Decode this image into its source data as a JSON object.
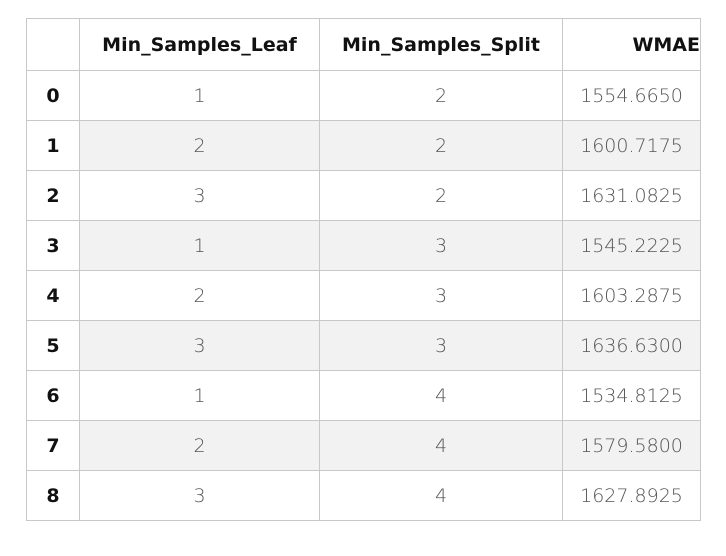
{
  "table": {
    "columns": [
      "",
      "Min_Samples_Leaf",
      "Min_Samples_Split",
      "WMAE"
    ],
    "rows": [
      {
        "index": "0",
        "leaf": "1",
        "split": "2",
        "wmae": "1554.6650"
      },
      {
        "index": "1",
        "leaf": "2",
        "split": "2",
        "wmae": "1600.7175"
      },
      {
        "index": "2",
        "leaf": "3",
        "split": "2",
        "wmae": "1631.0825"
      },
      {
        "index": "3",
        "leaf": "1",
        "split": "3",
        "wmae": "1545.2225"
      },
      {
        "index": "4",
        "leaf": "2",
        "split": "3",
        "wmae": "1603.2875"
      },
      {
        "index": "5",
        "leaf": "3",
        "split": "3",
        "wmae": "1636.6300"
      },
      {
        "index": "6",
        "leaf": "1",
        "split": "4",
        "wmae": "1534.8125"
      },
      {
        "index": "7",
        "leaf": "2",
        "split": "4",
        "wmae": "1579.5800"
      },
      {
        "index": "8",
        "leaf": "3",
        "split": "4",
        "wmae": "1627.8925"
      }
    ]
  }
}
